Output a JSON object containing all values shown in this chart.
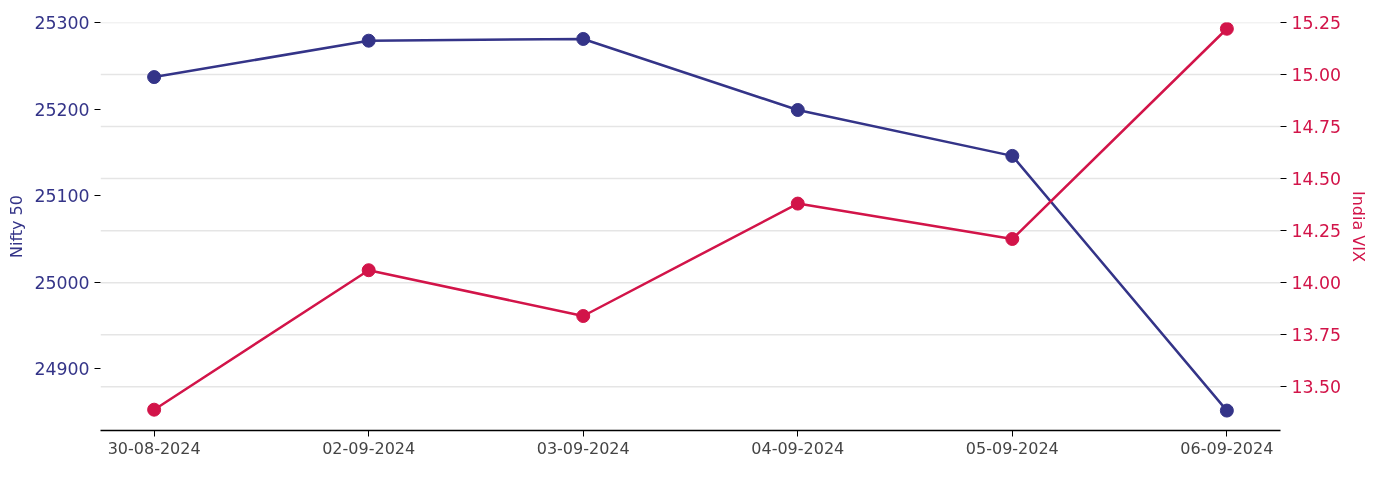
{
  "chart_data": {
    "type": "line",
    "categories": [
      "30-08-2024",
      "02-09-2024",
      "03-09-2024",
      "04-09-2024",
      "05-09-2024",
      "06-09-2024"
    ],
    "ylabel": "Nifty 50",
    "y2label": "India VIX",
    "series": [
      {
        "color": "#343488",
        "values": [
          25237,
          25279,
          25281,
          25199,
          25146,
          24852
        ]
      },
      {
        "color": "#d21449",
        "axis": "y2",
        "values": [
          13.39,
          14.06,
          13.84,
          14.38,
          14.21,
          15.22
        ]
      }
    ],
    "ylim": [
      24829,
      25300
    ],
    "yticks": [
      24900,
      25000,
      25100,
      25200,
      25300
    ],
    "y2lim": [
      13.29,
      15.25
    ],
    "y2ticks": [
      {
        "value": 13.5,
        "label": "13.50"
      },
      {
        "value": 13.75,
        "label": "13.75"
      },
      {
        "value": 14.0,
        "label": "14.00"
      },
      {
        "value": 14.25,
        "label": "14.25"
      },
      {
        "value": 14.5,
        "label": "14.50"
      },
      {
        "value": 14.75,
        "label": "14.75"
      },
      {
        "value": 15.0,
        "label": "15.00"
      },
      {
        "value": 15.25,
        "label": "15.25"
      }
    ],
    "grid": "y2",
    "marker": "circle",
    "line_style": "solid"
  }
}
